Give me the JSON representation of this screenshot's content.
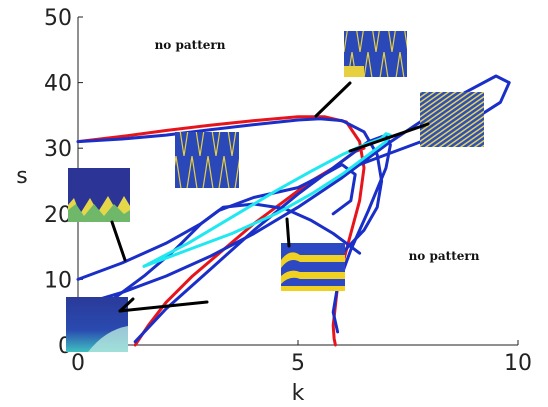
{
  "chart_data": {
    "type": "line",
    "title": "",
    "xlabel": "k",
    "ylabel": "s",
    "xlim": [
      0,
      10
    ],
    "ylim": [
      0,
      50
    ],
    "xticks": [
      0,
      5,
      10
    ],
    "yticks": [
      0,
      10,
      20,
      30,
      40,
      50
    ],
    "grid": false,
    "annotations": [
      {
        "text": "no pattern",
        "x": 2.0,
        "y": 46.5
      },
      {
        "text": "no pattern",
        "x": 8.0,
        "y": 14.5
      }
    ],
    "series": [
      {
        "color": "#e8141c",
        "x": [
          0.0,
          1.0,
          2.0,
          3.0,
          4.0,
          5.0,
          5.6,
          6.1,
          6.4,
          6.5,
          6.4,
          6.2,
          6.0,
          5.9,
          5.85,
          5.8,
          5.82,
          5.85
        ],
        "y": [
          31.0,
          31.8,
          32.7,
          33.5,
          34.2,
          34.8,
          34.8,
          34.0,
          31.0,
          27.0,
          22.0,
          17.0,
          12.0,
          9.0,
          6.0,
          3.0,
          1.0,
          0.0
        ]
      },
      {
        "color": "#e8141c",
        "x": [
          1.3,
          1.6,
          2.0,
          2.6,
          3.3,
          4.0,
          4.7,
          5.3,
          5.8,
          6.1,
          6.3,
          6.5
        ],
        "y": [
          0.0,
          3.0,
          6.5,
          10.5,
          14.5,
          18.5,
          22.0,
          25.0,
          27.0,
          28.5,
          29.5,
          30.0
        ]
      },
      {
        "color": "#1a2ec8",
        "x": [
          0.0,
          1.0,
          2.0,
          3.0,
          4.0,
          5.0,
          5.5,
          6.0,
          6.5,
          6.8,
          6.9,
          6.8,
          6.5,
          6.0,
          5.5
        ],
        "y": [
          31.0,
          31.4,
          32.0,
          32.8,
          33.6,
          34.3,
          34.5,
          34.2,
          32.5,
          29.0,
          25.0,
          21.0,
          17.5,
          14.0,
          11.0
        ]
      },
      {
        "color": "#1a2ec8",
        "x": [
          1.3,
          2.0,
          3.0,
          4.0,
          5.0,
          6.0,
          6.6,
          7.0,
          7.1,
          7.0,
          6.6,
          6.2,
          5.9,
          5.8,
          5.9
        ],
        "y": [
          0.5,
          5.5,
          11.5,
          17.5,
          23.0,
          28.0,
          31.0,
          32.0,
          30.5,
          27.0,
          20.5,
          14.5,
          9.0,
          5.0,
          2.0
        ]
      },
      {
        "color": "#1a2ec8",
        "x": [
          0.0,
          1.0,
          2.0,
          3.0,
          4.0,
          5.0,
          6.0,
          7.0,
          8.0,
          8.8,
          9.5,
          9.8,
          9.6,
          8.9,
          7.8,
          6.8,
          6.2
        ],
        "y": [
          6.0,
          8.0,
          10.5,
          13.5,
          17.0,
          21.0,
          25.5,
          30.5,
          35.0,
          38.5,
          41.0,
          40.0,
          37.0,
          34.0,
          31.0,
          28.5,
          27.0
        ]
      },
      {
        "color": "#1a2ec8",
        "x": [
          0.0,
          1.0,
          2.0,
          2.8,
          3.2,
          4.0,
          5.0,
          5.6,
          6.0,
          6.3,
          6.2,
          5.8
        ],
        "y": [
          10.0,
          12.5,
          15.5,
          18.5,
          20.5,
          22.5,
          24.0,
          26.0,
          27.5,
          26.0,
          22.0,
          20.0
        ]
      },
      {
        "color": "#1a2ec8",
        "x": [
          0.0,
          0.8,
          1.5,
          2.2,
          2.8,
          3.3,
          4.0,
          4.7,
          5.3,
          5.8,
          6.2,
          6.4
        ],
        "y": [
          5.0,
          7.0,
          10.5,
          14.5,
          18.5,
          21.0,
          21.5,
          20.8,
          19.0,
          17.0,
          15.0,
          14.0
        ]
      },
      {
        "color": "#1fe8f0",
        "x": [
          1.5,
          2.5,
          3.5,
          4.5,
          5.3,
          6.0,
          6.6,
          7.0,
          7.1,
          7.0
        ],
        "y": [
          12.0,
          14.5,
          17.0,
          20.0,
          23.0,
          26.0,
          29.0,
          31.0,
          32.0,
          32.2
        ]
      },
      {
        "color": "#1fe8f0",
        "x": [
          1.5,
          2.5,
          3.5,
          4.5,
          5.3,
          6.0,
          6.5,
          6.9,
          7.0
        ],
        "y": [
          12.0,
          15.5,
          19.5,
          23.5,
          26.5,
          29.0,
          30.5,
          31.5,
          32.2
        ]
      }
    ]
  }
}
